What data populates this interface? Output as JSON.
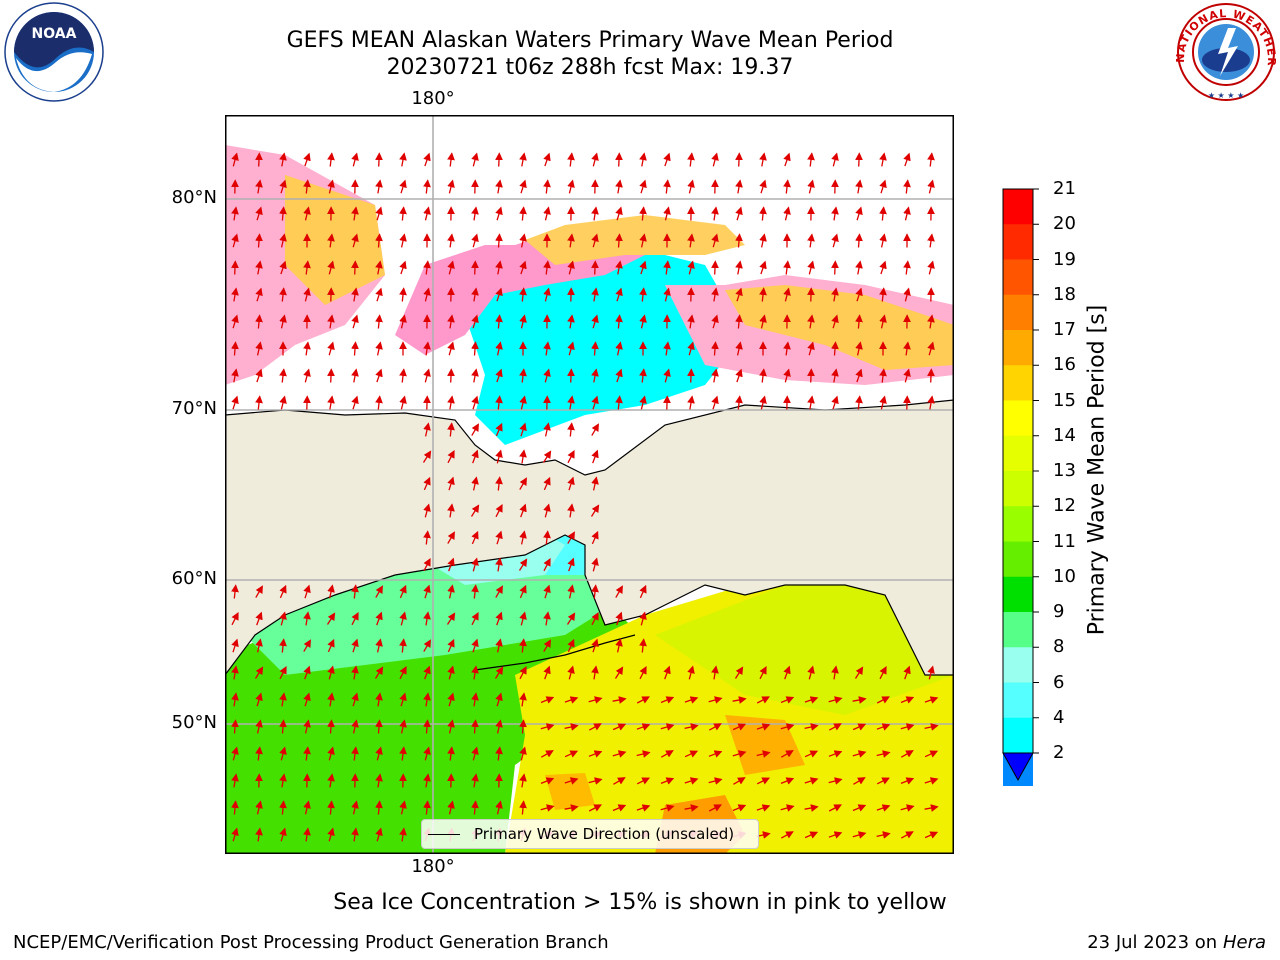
{
  "header": {
    "title_line1": "GEFS MEAN Alaskan Waters Primary Wave Mean Period",
    "title_line2": "20230721 t06z 288h fcst   Max: 19.37"
  },
  "logos": {
    "left": "noaa-logo",
    "left_text": "NOAA",
    "right": "national-weather-service-logo",
    "right_text": "NATIONAL WEATHER SERVICE"
  },
  "map": {
    "lat_labels": [
      "80°N",
      "70°N",
      "60°N",
      "50°N"
    ],
    "lon_label_top": "180°",
    "lon_label_bottom": "180°",
    "legend_label": "Primary Wave Direction (unscaled)",
    "colors": {
      "land": "#efecdc",
      "frame": "#000000",
      "grid": "#b0b0b0",
      "arrow": "#e00000"
    }
  },
  "colorbar": {
    "title": "Primary Wave Mean Period [s]",
    "ticks": [
      "21",
      "20",
      "19",
      "18",
      "17",
      "16",
      "15",
      "14",
      "13",
      "12",
      "11",
      "10",
      "9",
      "8",
      "6",
      "4",
      "2"
    ],
    "colors_top_to_bottom": [
      "#ff0000",
      "#ff2a00",
      "#ff5500",
      "#ff8000",
      "#ffaa00",
      "#ffd400",
      "#ffff00",
      "#e6ff00",
      "#ccff00",
      "#99ff00",
      "#66ee00",
      "#00e000",
      "#55ff88",
      "#99ffee",
      "#55ffff",
      "#00ffff",
      "#0088ff"
    ],
    "extend_color": "#0000ff"
  },
  "footer": {
    "caption": "Sea Ice Concentration > 15% is shown in pink to yellow",
    "left": "NCEP/EMC/Verification Post Processing Product Generation Branch",
    "right_date": "23 Jul 2023 on ",
    "right_host": "Hera"
  }
}
